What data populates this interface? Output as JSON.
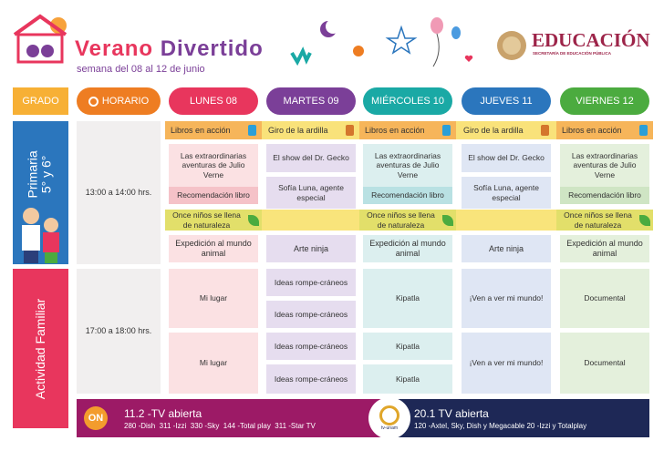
{
  "header": {
    "title_word1": "Verano",
    "title_word2": "Divertido",
    "subtitle": "semana del 08 al 12 de junio",
    "brand": "EDUCACIÓN",
    "brand_sub": "SECRETARÍA DE EDUCACIÓN PÚBLICA",
    "title_colors": [
      "#e8365d",
      "#ee7d22",
      "#7b3f98",
      "#1aa9a5",
      "#4bab3f",
      "#2b76bd"
    ]
  },
  "columns": {
    "grado": "GRADO",
    "horario": "HORARIO",
    "days": [
      {
        "label": "LUNES 08",
        "color": "#e8365d",
        "light": "#fbe1e3",
        "dark": "#f5c2c8"
      },
      {
        "label": "MARTES 09",
        "color": "#7b3f98",
        "light": "#e6ddef",
        "dark": "#d9cce8"
      },
      {
        "label": "MIÉRCOLES 10",
        "color": "#1aa9a5",
        "light": "#dcefef",
        "dark": "#b9e1e3"
      },
      {
        "label": "JUEVES 11",
        "color": "#2b76bd",
        "light": "#dfe6f4",
        "dark": "#cdd8ee"
      },
      {
        "label": "VIERNES 12",
        "color": "#4bab3f",
        "light": "#e4f0dc",
        "dark": "#cfe5c4"
      }
    ]
  },
  "primaria": {
    "label_line1": "Primaria",
    "label_line2": "5° y 6°",
    "time": "13:00 a 14:00 hrs.",
    "row_a": [
      "Libros en acción",
      "Giro de la ardilla",
      "Libros en acción",
      "Giro de la ardilla",
      "Libros en acción"
    ],
    "row_a_icons": [
      "book-icon",
      "squirrel-icon",
      "book-icon",
      "squirrel-icon",
      "book-icon"
    ],
    "row_b": [
      [
        "Las extraordinarias aventuras de Julio Verne",
        "Recomendación libro"
      ],
      [
        "El show del Dr. Gecko",
        "Sofía Luna, agente especial"
      ],
      [
        "Las extraordinarias aventuras de Julio Verne",
        "Recomendación libro"
      ],
      [
        "El show del Dr. Gecko",
        "Sofía Luna, agente especial"
      ],
      [
        "Las extraordinarias aventuras de Julio Verne",
        "Recomendación libro"
      ]
    ],
    "row_c": [
      "Once niños se llena de naturaleza",
      "",
      "Once niños se llena de naturaleza",
      "",
      "Once niños se llena de naturaleza"
    ],
    "row_d": [
      "Expedición al mundo animal",
      "Arte ninja",
      "Expedición al mundo animal",
      "Arte ninja",
      "Expedición al mundo animal"
    ]
  },
  "familiar": {
    "label": "Actividad Familiar",
    "time": "17:00 a 18:00 hrs.",
    "days": [
      [
        "Mi lugar",
        "Mi lugar"
      ],
      [
        "Ideas rompe-cráneos",
        "Ideas rompe-cráneos",
        "Ideas rompe-cráneos",
        "Ideas rompe-cráneos"
      ],
      [
        "Kipatla",
        "Kipatla",
        "Kipatla"
      ],
      [
        "¡Ven a ver mi mundo!",
        "¡Ven a ver mi mundo!"
      ],
      [
        "Documental",
        "Documental"
      ]
    ]
  },
  "footer": {
    "left_logo": "ON",
    "left_title": "11.2 -TV abierta",
    "left_channels": "280 -Dish  311 -Izzi  330 -Sky  144 -Total play  311 -Star TV",
    "right_logo": "tv-unam",
    "right_title": "20.1 TV abierta",
    "right_channels": "120 -Axtel, Sky, Dish y Megacable 20 -Izzi y Totalplay"
  }
}
